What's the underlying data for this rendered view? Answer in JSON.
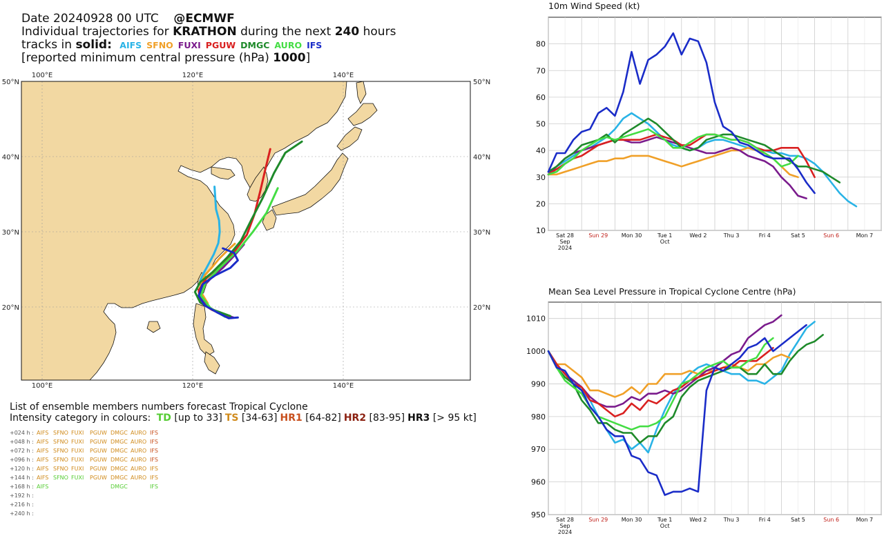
{
  "header": {
    "line1_a": "Date 20240928 00 UTC",
    "line1_b": "@ECMWF",
    "line2_a": "Individual trajectories for",
    "line2_storm": "KRATHON",
    "line2_b": "during the next",
    "line2_hours": "240",
    "line2_c": "hours",
    "line3_a": "tracks in",
    "line3_solid": "solid",
    "line3_colon": ":",
    "line4_a": "[reported minimum central pressure (hPa)",
    "line4_val": "1000",
    "line4_b": "]"
  },
  "models": [
    {
      "name": "AIFS",
      "color": "#29b3e6"
    },
    {
      "name": "SFNO",
      "color": "#f0a028"
    },
    {
      "name": "FUXI",
      "color": "#7a1b8c"
    },
    {
      "name": "PGUW",
      "color": "#d92020"
    },
    {
      "name": "DMGC",
      "color": "#1e8a2a"
    },
    {
      "name": "AURO",
      "color": "#44dd44"
    },
    {
      "name": "IFS",
      "color": "#1a2cc8"
    }
  ],
  "map": {
    "lon_labels": [
      "100°E",
      "120°E",
      "140°E"
    ],
    "lat_labels": [
      "50°N",
      "40°N",
      "30°N",
      "20°N"
    ],
    "land_color": "#f2d8a2",
    "sea_color": "#ffffff"
  },
  "legend": {
    "title": "List of ensemble members numbers forecast Tropical Cyclone",
    "intensity_prefix": "Intensity category in colours:",
    "categories": [
      {
        "code": "TD",
        "range": "[up to 33]",
        "color": "#55cc33"
      },
      {
        "code": "TS",
        "range": "[34-63]",
        "color": "#d08a1a"
      },
      {
        "code": "HR1",
        "range": "[64-82]",
        "color": "#c8501e"
      },
      {
        "code": "HR2",
        "range": "[83-95]",
        "color": "#8b2010"
      },
      {
        "code": "HR3",
        "range": "[> 95 kt]",
        "color": "#111111"
      }
    ],
    "rows": [
      {
        "lead": "+024 h :",
        "members": [
          "AIFS",
          "SFNO",
          "FUXI",
          "PGUW",
          "DMGC",
          "AURO",
          "IFS"
        ],
        "cats": [
          "ts",
          "ts",
          "ts",
          "ts",
          "ts",
          "ts",
          "hr1"
        ]
      },
      {
        "lead": "+048 h :",
        "members": [
          "AIFS",
          "SFNO",
          "FUXI",
          "PGUW",
          "DMGC",
          "AURO",
          "IFS"
        ],
        "cats": [
          "ts",
          "ts",
          "ts",
          "ts",
          "ts",
          "ts",
          "hr1"
        ]
      },
      {
        "lead": "+072 h :",
        "members": [
          "AIFS",
          "SFNO",
          "FUXI",
          "PGUW",
          "DMGC",
          "AURO",
          "IFS"
        ],
        "cats": [
          "ts",
          "ts",
          "ts",
          "ts",
          "ts",
          "ts",
          "hr1"
        ]
      },
      {
        "lead": "+096 h :",
        "members": [
          "AIFS",
          "SFNO",
          "FUXI",
          "PGUW",
          "DMGC",
          "AURO",
          "IFS"
        ],
        "cats": [
          "ts",
          "ts",
          "ts",
          "ts",
          "ts",
          "ts",
          "hr1"
        ]
      },
      {
        "lead": "+120 h :",
        "members": [
          "AIFS",
          "SFNO",
          "FUXI",
          "PGUW",
          "DMGC",
          "AURO",
          "IFS"
        ],
        "cats": [
          "ts",
          "ts",
          "ts",
          "ts",
          "ts",
          "ts",
          "ts"
        ]
      },
      {
        "lead": "+144 h :",
        "members": [
          "AIFS",
          "SFNO",
          "FUXI",
          "PGUW",
          "DMGC",
          "AURO",
          "IFS"
        ],
        "cats": [
          "ts",
          "td",
          "td",
          "ts",
          "ts",
          "ts",
          "ts"
        ]
      },
      {
        "lead": "+168 h :",
        "members": [
          "AIFS",
          "",
          "",
          "",
          "DMGC",
          "",
          "IFS"
        ],
        "cats": [
          "td",
          "",
          "",
          "",
          "td",
          "",
          "td"
        ]
      },
      {
        "lead": "+192 h :",
        "members": [],
        "cats": []
      },
      {
        "lead": "+216 h :",
        "members": [],
        "cats": []
      },
      {
        "lead": "+240 h :",
        "members": [],
        "cats": []
      }
    ],
    "cat_colors": {
      "td": "#55cc33",
      "ts": "#d08a1a",
      "hr1": "#c8501e"
    }
  },
  "chart_data": [
    {
      "type": "line",
      "title": "10m Wind Speed (kt)",
      "xlabel": "",
      "ylabel": "",
      "x_ticks": [
        {
          "label": "Sat 28",
          "sub": "Sep",
          "sub2": "2024",
          "weekend": false
        },
        {
          "label": "Sun 29",
          "weekend": true
        },
        {
          "label": "Mon 30",
          "weekend": false
        },
        {
          "label": "Tue 1",
          "sub": "Oct",
          "weekend": false
        },
        {
          "label": "Wed 2",
          "weekend": false
        },
        {
          "label": "Thu 3",
          "weekend": false
        },
        {
          "label": "Fri 4",
          "weekend": false
        },
        {
          "label": "Sat 5",
          "weekend": false
        },
        {
          "label": "Sun 6",
          "weekend": true
        },
        {
          "label": "Mon 7",
          "weekend": false
        }
      ],
      "xlim": [
        0,
        10
      ],
      "ylim": [
        10,
        90
      ],
      "y_ticks": [
        10,
        20,
        30,
        40,
        50,
        60,
        70,
        80
      ],
      "grid": true,
      "step_days": 0.25,
      "series": [
        {
          "name": "AIFS",
          "values": [
            32,
            34,
            36,
            38,
            40,
            41,
            43,
            45,
            48,
            52,
            54,
            52,
            50,
            47,
            44,
            42,
            41,
            40,
            41,
            43,
            44,
            44,
            43,
            42,
            41,
            40,
            40,
            39,
            39,
            38,
            38,
            37,
            35,
            32,
            28,
            24,
            21,
            19
          ]
        },
        {
          "name": "SFNO",
          "values": [
            31,
            31,
            32,
            33,
            34,
            35,
            36,
            36,
            37,
            37,
            38,
            38,
            38,
            37,
            36,
            35,
            34,
            35,
            36,
            37,
            38,
            39,
            40,
            40,
            41,
            40,
            39,
            37,
            34,
            31,
            30
          ]
        },
        {
          "name": "FUXI",
          "values": [
            31,
            34,
            37,
            39,
            40,
            41,
            42,
            43,
            44,
            44,
            43,
            43,
            44,
            45,
            44,
            43,
            42,
            41,
            40,
            39,
            39,
            40,
            41,
            40,
            38,
            37,
            36,
            34,
            30,
            27,
            23,
            22
          ]
        },
        {
          "name": "PGUW",
          "values": [
            31,
            33,
            35,
            37,
            38,
            40,
            42,
            43,
            44,
            44,
            44,
            44,
            45,
            46,
            45,
            44,
            42,
            42,
            44,
            46,
            46,
            45,
            44,
            44,
            43,
            41,
            40,
            40,
            41,
            41,
            41,
            36,
            30
          ]
        },
        {
          "name": "DMGC",
          "values": [
            32,
            34,
            37,
            39,
            42,
            43,
            44,
            46,
            43,
            46,
            48,
            50,
            52,
            50,
            47,
            44,
            41,
            40,
            41,
            44,
            45,
            46,
            46,
            45,
            44,
            43,
            42,
            40,
            38,
            36,
            34,
            34,
            33,
            32,
            30,
            28
          ]
        },
        {
          "name": "AURO",
          "values": [
            31,
            32,
            35,
            37,
            40,
            42,
            44,
            45,
            44,
            45,
            46,
            47,
            48,
            46,
            44,
            41,
            41,
            43,
            45,
            46,
            46,
            45,
            44,
            44,
            43,
            41,
            39,
            37,
            34,
            35,
            38
          ]
        },
        {
          "name": "IFS",
          "values": [
            32,
            39,
            39,
            44,
            47,
            48,
            54,
            56,
            53,
            62,
            77,
            65,
            74,
            76,
            79,
            84,
            76,
            82,
            81,
            73,
            58,
            49,
            47,
            43,
            42,
            40,
            38,
            37,
            37,
            37,
            33,
            28,
            24
          ]
        }
      ]
    },
    {
      "type": "line",
      "title": "Mean Sea Level Pressure in Tropical Cyclone Centre (hPa)",
      "xlabel": "",
      "ylabel": "",
      "x_ticks": [
        {
          "label": "Sat 28",
          "sub": "Sep",
          "sub2": "2024",
          "weekend": false
        },
        {
          "label": "Sun 29",
          "weekend": true
        },
        {
          "label": "Mon 30",
          "weekend": false
        },
        {
          "label": "Tue 1",
          "sub": "Oct",
          "weekend": false
        },
        {
          "label": "Wed 2",
          "weekend": false
        },
        {
          "label": "Thu 3",
          "weekend": false
        },
        {
          "label": "Fri 4",
          "weekend": false
        },
        {
          "label": "Sat 5",
          "weekend": false
        },
        {
          "label": "Sun 6",
          "weekend": true
        },
        {
          "label": "Mon 7",
          "weekend": false
        }
      ],
      "xlim": [
        0,
        10
      ],
      "ylim": [
        950,
        1015
      ],
      "y_ticks": [
        950,
        960,
        970,
        980,
        990,
        1000,
        1010
      ],
      "grid": true,
      "step_days": 0.25,
      "series": [
        {
          "name": "AIFS",
          "values": [
            1000,
            996,
            993,
            991,
            988,
            985,
            980,
            976,
            972,
            973,
            970,
            972,
            969,
            976,
            982,
            987,
            990,
            993,
            995,
            996,
            995,
            994,
            993,
            993,
            991,
            991,
            990,
            992,
            994,
            999,
            1003,
            1007,
            1009
          ]
        },
        {
          "name": "SFNO",
          "values": [
            1000,
            996,
            996,
            994,
            992,
            988,
            988,
            987,
            986,
            987,
            989,
            987,
            990,
            990,
            993,
            993,
            993,
            994,
            993,
            994,
            994,
            995,
            996,
            995,
            994,
            996,
            996,
            998,
            999,
            998
          ]
        },
        {
          "name": "FUXI",
          "values": [
            1000,
            996,
            993,
            991,
            989,
            986,
            984,
            983,
            983,
            984,
            986,
            985,
            987,
            987,
            988,
            987,
            988,
            990,
            992,
            994,
            995,
            997,
            999,
            1000,
            1004,
            1006,
            1008,
            1009,
            1011
          ]
        },
        {
          "name": "PGUW",
          "values": [
            1000,
            996,
            993,
            990,
            989,
            985,
            984,
            982,
            980,
            981,
            984,
            982,
            985,
            984,
            986,
            988,
            989,
            991,
            992,
            993,
            994,
            995,
            995,
            997,
            997,
            997,
            999,
            1001
          ]
        },
        {
          "name": "DMGC",
          "values": [
            1000,
            995,
            992,
            990,
            985,
            982,
            978,
            978,
            976,
            975,
            975,
            972,
            974,
            974,
            978,
            980,
            986,
            989,
            991,
            992,
            993,
            994,
            995,
            995,
            993,
            993,
            996,
            993,
            993,
            997,
            1000,
            1002,
            1003,
            1005
          ]
        },
        {
          "name": "AURO",
          "values": [
            1000,
            995,
            991,
            989,
            987,
            983,
            980,
            979,
            978,
            977,
            976,
            977,
            977,
            978,
            980,
            985,
            990,
            991,
            993,
            995,
            996,
            997,
            995,
            995,
            997,
            998,
            1002,
            1004
          ]
        },
        {
          "name": "IFS",
          "values": [
            1000,
            995,
            994,
            990,
            988,
            983,
            980,
            976,
            974,
            974,
            968,
            967,
            963,
            962,
            956,
            957,
            957,
            958,
            957,
            988,
            995,
            994,
            996,
            998,
            1001,
            1002,
            1004,
            1000,
            1002,
            1004,
            1006,
            1008
          ]
        }
      ]
    }
  ],
  "tracks": [
    {
      "name": "AIFS",
      "points": [
        [
          121.2,
          22.5
        ],
        [
          121.0,
          23.5
        ],
        [
          121.4,
          24.4
        ],
        [
          122.0,
          25.5
        ],
        [
          122.8,
          27.0
        ],
        [
          123.4,
          28.5
        ],
        [
          123.6,
          30.0
        ],
        [
          123.5,
          31.5
        ],
        [
          123.1,
          33.0
        ],
        [
          123.0,
          34.5
        ],
        [
          122.9,
          36.0
        ]
      ]
    },
    {
      "name": "SFNO",
      "points": [
        [
          122.0,
          20.5
        ],
        [
          121.2,
          21.8
        ],
        [
          121.1,
          23.0
        ],
        [
          121.6,
          24.2
        ],
        [
          122.5,
          25.2
        ],
        [
          123.5,
          26.4
        ],
        [
          124.7,
          27.6
        ],
        [
          125.6,
          28.4
        ]
      ]
    },
    {
      "name": "FUXI",
      "points": [
        [
          125.4,
          18.6
        ],
        [
          123.6,
          19.2
        ],
        [
          122.2,
          19.9
        ],
        [
          121.0,
          21.2
        ],
        [
          121.3,
          22.6
        ],
        [
          122.4,
          23.8
        ],
        [
          124.0,
          25.2
        ],
        [
          125.5,
          26.8
        ],
        [
          126.8,
          28.3
        ]
      ]
    },
    {
      "name": "PGUW",
      "points": [
        [
          124.6,
          18.8
        ],
        [
          122.6,
          19.6
        ],
        [
          121.0,
          20.6
        ],
        [
          120.8,
          22.2
        ],
        [
          121.8,
          23.8
        ],
        [
          123.5,
          25.4
        ],
        [
          125.5,
          27.3
        ],
        [
          127.2,
          29.6
        ],
        [
          128.2,
          32.3
        ],
        [
          129.0,
          35.5
        ],
        [
          129.7,
          38.5
        ],
        [
          130.3,
          41.0
        ]
      ]
    },
    {
      "name": "DMGC",
      "points": [
        [
          125.0,
          18.8
        ],
        [
          122.8,
          19.6
        ],
        [
          121.0,
          20.6
        ],
        [
          120.3,
          22.0
        ],
        [
          121.0,
          23.3
        ],
        [
          122.6,
          24.6
        ],
        [
          124.6,
          26.6
        ],
        [
          126.4,
          28.8
        ],
        [
          127.8,
          31.6
        ],
        [
          129.3,
          34.5
        ],
        [
          130.8,
          37.8
        ],
        [
          132.3,
          40.5
        ],
        [
          134.5,
          42.0
        ]
      ]
    },
    {
      "name": "AURO",
      "points": [
        [
          124.3,
          18.7
        ],
        [
          122.4,
          19.8
        ],
        [
          121.1,
          21.5
        ],
        [
          121.7,
          23.2
        ],
        [
          123.6,
          25.2
        ],
        [
          126.0,
          27.5
        ],
        [
          128.0,
          30.0
        ],
        [
          129.8,
          32.5
        ],
        [
          131.3,
          35.8
        ]
      ]
    },
    {
      "name": "IFS",
      "points": [
        [
          126.0,
          18.6
        ],
        [
          124.8,
          18.5
        ],
        [
          123.2,
          19.3
        ],
        [
          121.6,
          20.2
        ],
        [
          120.8,
          21.5
        ],
        [
          121.3,
          23.0
        ],
        [
          123.0,
          24.2
        ],
        [
          125.0,
          25.2
        ],
        [
          126.0,
          26.2
        ],
        [
          125.5,
          27.2
        ],
        [
          124.0,
          27.8
        ]
      ]
    }
  ]
}
